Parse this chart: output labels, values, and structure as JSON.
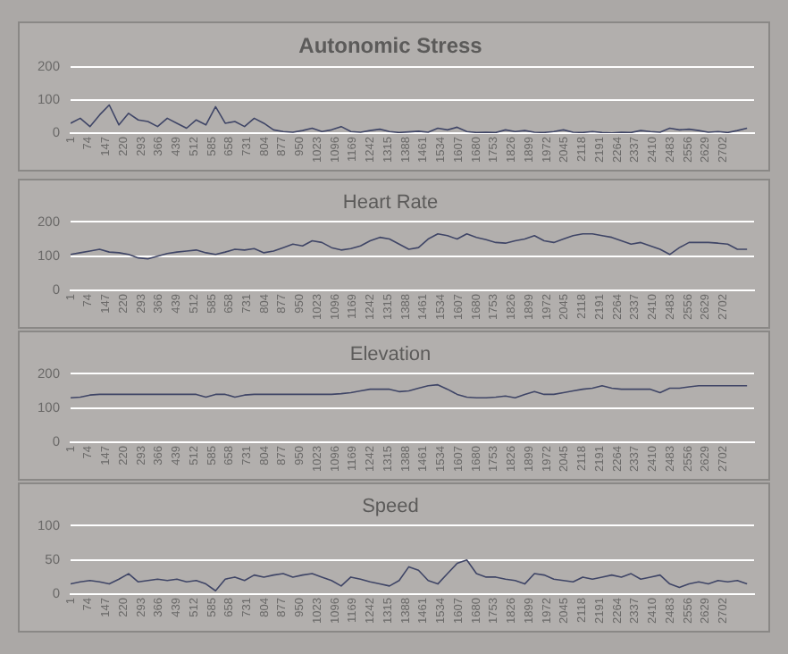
{
  "chart_data": [
    {
      "type": "line",
      "title": "Autonomic Stress",
      "color": "#3f4566",
      "grid": "y",
      "legend": false,
      "xlim": [
        1,
        2830
      ],
      "ylim": [
        0,
        200
      ],
      "yticks": [
        0,
        100,
        200
      ],
      "xticks": [
        1,
        74,
        147,
        220,
        293,
        366,
        439,
        512,
        585,
        658,
        731,
        804,
        877,
        950,
        1023,
        1096,
        1169,
        1242,
        1315,
        1388,
        1461,
        1534,
        1607,
        1680,
        1753,
        1826,
        1899,
        1972,
        2045,
        2118,
        2191,
        2264,
        2337,
        2410,
        2483,
        2556,
        2629,
        2702
      ],
      "x": [
        1,
        41,
        81,
        121,
        161,
        201,
        241,
        281,
        321,
        361,
        401,
        441,
        481,
        521,
        561,
        601,
        641,
        681,
        721,
        761,
        801,
        841,
        881,
        921,
        961,
        1001,
        1041,
        1081,
        1121,
        1161,
        1201,
        1241,
        1281,
        1321,
        1361,
        1401,
        1441,
        1481,
        1521,
        1561,
        1601,
        1641,
        1681,
        1721,
        1761,
        1801,
        1841,
        1881,
        1921,
        1961,
        2001,
        2041,
        2081,
        2121,
        2161,
        2201,
        2241,
        2281,
        2321,
        2361,
        2401,
        2441,
        2481,
        2521,
        2561,
        2601,
        2641,
        2681,
        2721,
        2761,
        2801
      ],
      "values": [
        30,
        45,
        20,
        55,
        85,
        25,
        60,
        40,
        35,
        20,
        45,
        30,
        15,
        40,
        25,
        80,
        30,
        35,
        20,
        45,
        30,
        10,
        5,
        3,
        8,
        15,
        5,
        10,
        20,
        5,
        3,
        8,
        12,
        5,
        2,
        4,
        6,
        3,
        15,
        10,
        18,
        5,
        2,
        3,
        2,
        10,
        5,
        8,
        3,
        2,
        5,
        10,
        3,
        2,
        5,
        2,
        1,
        3,
        2,
        8,
        5,
        3,
        15,
        10,
        12,
        8,
        3,
        5,
        2,
        8,
        15
      ]
    },
    {
      "type": "line",
      "title": "Heart Rate",
      "color": "#3f4566",
      "grid": "y",
      "legend": false,
      "xlim": [
        1,
        2830
      ],
      "ylim": [
        0,
        200
      ],
      "yticks": [
        0,
        100,
        200
      ],
      "xticks": [
        1,
        74,
        147,
        220,
        293,
        366,
        439,
        512,
        585,
        658,
        731,
        804,
        877,
        950,
        1023,
        1096,
        1169,
        1242,
        1315,
        1388,
        1461,
        1534,
        1607,
        1680,
        1753,
        1826,
        1899,
        1972,
        2045,
        2118,
        2191,
        2264,
        2337,
        2410,
        2483,
        2556,
        2629,
        2702
      ],
      "x": [
        1,
        41,
        81,
        121,
        161,
        201,
        241,
        281,
        321,
        361,
        401,
        441,
        481,
        521,
        561,
        601,
        641,
        681,
        721,
        761,
        801,
        841,
        881,
        921,
        961,
        1001,
        1041,
        1081,
        1121,
        1161,
        1201,
        1241,
        1281,
        1321,
        1361,
        1401,
        1441,
        1481,
        1521,
        1561,
        1601,
        1641,
        1681,
        1721,
        1761,
        1801,
        1841,
        1881,
        1921,
        1961,
        2001,
        2041,
        2081,
        2121,
        2161,
        2201,
        2241,
        2281,
        2321,
        2361,
        2401,
        2441,
        2481,
        2521,
        2561,
        2601,
        2641,
        2681,
        2721,
        2761,
        2801
      ],
      "values": [
        105,
        110,
        115,
        120,
        112,
        110,
        105,
        95,
        92,
        100,
        108,
        112,
        115,
        118,
        110,
        105,
        112,
        120,
        118,
        122,
        110,
        115,
        125,
        135,
        130,
        145,
        140,
        125,
        118,
        122,
        130,
        145,
        155,
        150,
        135,
        120,
        125,
        150,
        165,
        160,
        150,
        165,
        155,
        148,
        140,
        138,
        145,
        150,
        160,
        145,
        140,
        150,
        160,
        165,
        165,
        160,
        155,
        145,
        135,
        140,
        130,
        120,
        105,
        125,
        140,
        140,
        140,
        138,
        135,
        120,
        120
      ]
    },
    {
      "type": "line",
      "title": "Elevation",
      "color": "#3f4566",
      "grid": "y",
      "legend": false,
      "xlim": [
        1,
        2830
      ],
      "ylim": [
        0,
        200
      ],
      "yticks": [
        0,
        100,
        200
      ],
      "xticks": [
        1,
        74,
        147,
        220,
        293,
        366,
        439,
        512,
        585,
        658,
        731,
        804,
        877,
        950,
        1023,
        1096,
        1169,
        1242,
        1315,
        1388,
        1461,
        1534,
        1607,
        1680,
        1753,
        1826,
        1899,
        1972,
        2045,
        2118,
        2191,
        2264,
        2337,
        2410,
        2483,
        2556,
        2629,
        2702
      ],
      "x": [
        1,
        41,
        81,
        121,
        161,
        201,
        241,
        281,
        321,
        361,
        401,
        441,
        481,
        521,
        561,
        601,
        641,
        681,
        721,
        761,
        801,
        841,
        881,
        921,
        961,
        1001,
        1041,
        1081,
        1121,
        1161,
        1201,
        1241,
        1281,
        1321,
        1361,
        1401,
        1441,
        1481,
        1521,
        1561,
        1601,
        1641,
        1681,
        1721,
        1761,
        1801,
        1841,
        1881,
        1921,
        1961,
        2001,
        2041,
        2081,
        2121,
        2161,
        2201,
        2241,
        2281,
        2321,
        2361,
        2401,
        2441,
        2481,
        2521,
        2561,
        2601,
        2641,
        2681,
        2721,
        2761,
        2801
      ],
      "values": [
        130,
        132,
        138,
        140,
        140,
        140,
        140,
        140,
        140,
        140,
        140,
        140,
        140,
        140,
        132,
        140,
        140,
        132,
        138,
        140,
        140,
        140,
        140,
        140,
        140,
        140,
        140,
        140,
        142,
        145,
        150,
        155,
        155,
        155,
        148,
        150,
        158,
        165,
        168,
        155,
        140,
        132,
        130,
        130,
        132,
        135,
        130,
        140,
        148,
        140,
        140,
        145,
        150,
        155,
        158,
        165,
        158,
        155,
        155,
        155,
        155,
        145,
        158,
        158,
        162,
        165,
        165,
        165,
        165,
        165,
        165
      ]
    },
    {
      "type": "line",
      "title": "Speed",
      "color": "#3f4566",
      "grid": "y",
      "legend": false,
      "xlim": [
        1,
        2830
      ],
      "ylim": [
        0,
        100
      ],
      "yticks": [
        0,
        50,
        100
      ],
      "xticks": [
        1,
        74,
        147,
        220,
        293,
        366,
        439,
        512,
        585,
        658,
        731,
        804,
        877,
        950,
        1023,
        1096,
        1169,
        1242,
        1315,
        1388,
        1461,
        1534,
        1607,
        1680,
        1753,
        1826,
        1899,
        1972,
        2045,
        2118,
        2191,
        2264,
        2337,
        2410,
        2483,
        2556,
        2629,
        2702
      ],
      "x": [
        1,
        41,
        81,
        121,
        161,
        201,
        241,
        281,
        321,
        361,
        401,
        441,
        481,
        521,
        561,
        601,
        641,
        681,
        721,
        761,
        801,
        841,
        881,
        921,
        961,
        1001,
        1041,
        1081,
        1121,
        1161,
        1201,
        1241,
        1281,
        1321,
        1361,
        1401,
        1441,
        1481,
        1521,
        1561,
        1601,
        1641,
        1681,
        1721,
        1761,
        1801,
        1841,
        1881,
        1921,
        1961,
        2001,
        2041,
        2081,
        2121,
        2161,
        2201,
        2241,
        2281,
        2321,
        2361,
        2401,
        2441,
        2481,
        2521,
        2561,
        2601,
        2641,
        2681,
        2721,
        2761,
        2801
      ],
      "values": [
        15,
        18,
        20,
        18,
        15,
        22,
        30,
        18,
        20,
        22,
        20,
        22,
        18,
        20,
        15,
        5,
        22,
        25,
        20,
        28,
        25,
        28,
        30,
        25,
        28,
        30,
        25,
        20,
        12,
        25,
        22,
        18,
        15,
        12,
        20,
        40,
        35,
        20,
        15,
        30,
        45,
        50,
        30,
        25,
        25,
        22,
        20,
        15,
        30,
        28,
        22,
        20,
        18,
        25,
        22,
        25,
        28,
        25,
        30,
        22,
        25,
        28,
        15,
        10,
        15,
        18,
        15,
        20,
        18,
        20,
        15
      ]
    }
  ]
}
